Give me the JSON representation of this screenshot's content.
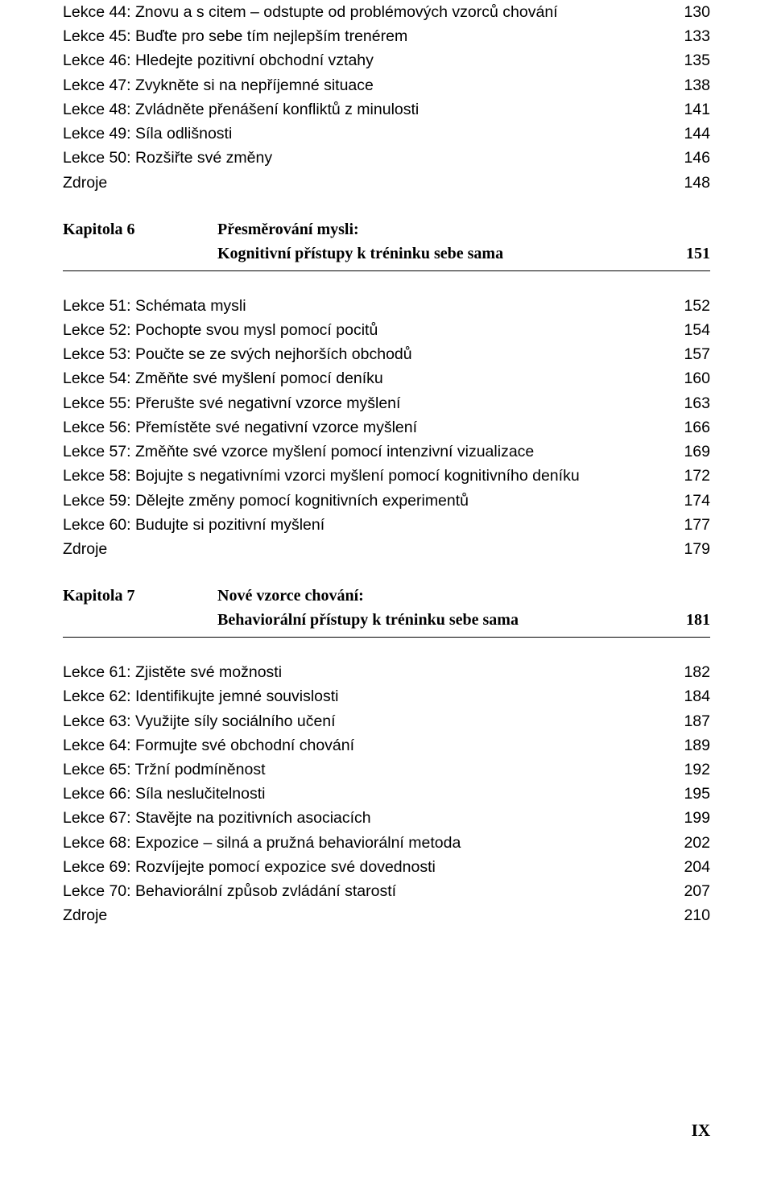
{
  "block1": {
    "items": [
      {
        "title": "Lekce 44: Znovu a s citem – odstupte od problémových vzorců chování",
        "page": "130"
      },
      {
        "title": "Lekce 45: Buďte pro sebe tím nejlepším trenérem",
        "page": "133"
      },
      {
        "title": "Lekce 46: Hledejte pozitivní obchodní vztahy",
        "page": "135"
      },
      {
        "title": "Lekce 47: Zvykněte si na nepříjemné situace",
        "page": "138"
      },
      {
        "title": "Lekce 48: Zvládněte přenášení konfliktů z minulosti",
        "page": "141"
      },
      {
        "title": "Lekce 49: Síla odlišnosti",
        "page": "144"
      },
      {
        "title": "Lekce 50: Rozšiřte své změny",
        "page": "146"
      },
      {
        "title": "Zdroje",
        "page": "148"
      }
    ]
  },
  "chapter6": {
    "label": "Kapitola 6",
    "line1": "Přesměrování mysli:",
    "line2": "Kognitivní přístupy k tréninku sebe sama",
    "page": "151"
  },
  "block2": {
    "items": [
      {
        "title": "Lekce 51: Schémata mysli",
        "page": "152"
      },
      {
        "title": "Lekce 52: Pochopte svou mysl pomocí pocitů",
        "page": "154"
      },
      {
        "title": "Lekce 53: Poučte se ze svých nejhorších obchodů",
        "page": "157"
      },
      {
        "title": "Lekce 54: Změňte své myšlení pomocí deníku",
        "page": "160"
      },
      {
        "title": "Lekce 55: Přerušte své negativní vzorce myšlení",
        "page": "163"
      },
      {
        "title": "Lekce 56: Přemístěte své negativní vzorce myšlení",
        "page": "166"
      },
      {
        "title": "Lekce 57: Změňte své vzorce myšlení pomocí intenzivní vizualizace",
        "page": "169"
      },
      {
        "title": "Lekce 58: Bojujte s negativními vzorci myšlení pomocí kognitivního deníku",
        "page": "172"
      },
      {
        "title": "Lekce 59: Dělejte změny pomocí kognitivních experimentů",
        "page": "174"
      },
      {
        "title": "Lekce 60: Budujte si pozitivní myšlení",
        "page": "177"
      },
      {
        "title": "Zdroje",
        "page": "179"
      }
    ]
  },
  "chapter7": {
    "label": "Kapitola 7",
    "line1": "Nové vzorce chování:",
    "line2": "Behaviorální přístupy k tréninku sebe sama",
    "page": "181"
  },
  "block3": {
    "items": [
      {
        "title": "Lekce 61: Zjistěte své možnosti",
        "page": "182"
      },
      {
        "title": "Lekce 62: Identifikujte jemné souvislosti",
        "page": "184"
      },
      {
        "title": "Lekce 63: Využijte síly sociálního učení",
        "page": "187"
      },
      {
        "title": "Lekce 64: Formujte své obchodní chování",
        "page": "189"
      },
      {
        "title": "Lekce 65: Tržní podmíněnost",
        "page": "192"
      },
      {
        "title": "Lekce 66: Síla neslučitelnosti",
        "page": "195"
      },
      {
        "title": "Lekce 67: Stavějte na pozitivních asociacích",
        "page": "199"
      },
      {
        "title": "Lekce 68: Expozice – silná a pružná behaviorální metoda",
        "page": "202"
      },
      {
        "title": "Lekce 69: Rozvíjejte pomocí expozice své dovednosti",
        "page": "204"
      },
      {
        "title": "Lekce 70: Behaviorální způsob zvládání starostí",
        "page": "207"
      },
      {
        "title": "Zdroje",
        "page": "210"
      }
    ]
  },
  "pageNumber": "IX"
}
